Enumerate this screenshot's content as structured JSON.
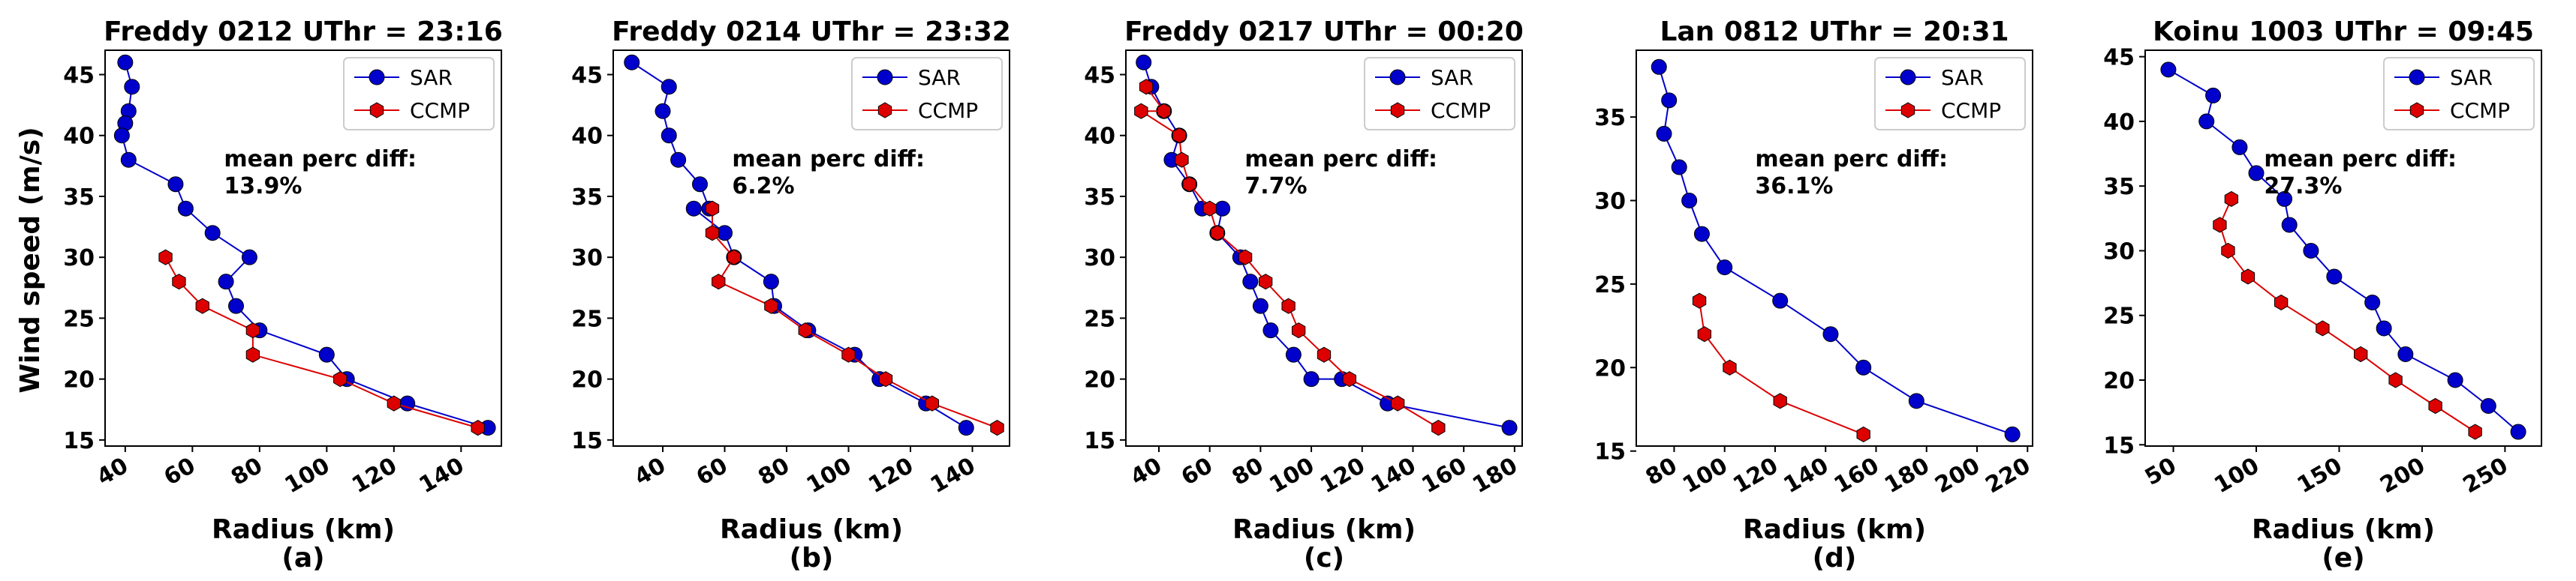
{
  "figure": {
    "ylabel": "Wind speed (m/s)"
  },
  "colors": {
    "sar": "#0000cc",
    "ccmp": "#dd0000"
  },
  "chart_data": [
    {
      "type": "line",
      "title": "Freddy 0212 UThr = 23:16",
      "subcaption": "(a)",
      "xlabel": "Radius (km)",
      "ylabel": "Wind speed (m/s)",
      "xlim": [
        34,
        152
      ],
      "ylim": [
        14.5,
        47
      ],
      "xticks": [
        40,
        60,
        80,
        100,
        120,
        140
      ],
      "yticks": [
        15,
        20,
        25,
        30,
        35,
        40,
        45
      ],
      "legend": "top-right",
      "annotation": [
        "mean perc diff:",
        "13.9%"
      ],
      "series": [
        {
          "name": "SAR",
          "points": [
            [
              40,
              46
            ],
            [
              42,
              44
            ],
            [
              41,
              42
            ],
            [
              40,
              41
            ],
            [
              39,
              40
            ],
            [
              41,
              38
            ],
            [
              55,
              36
            ],
            [
              58,
              34
            ],
            [
              66,
              32
            ],
            [
              77,
              30
            ],
            [
              70,
              28
            ],
            [
              73,
              26
            ],
            [
              80,
              24
            ],
            [
              100,
              22
            ],
            [
              106,
              20
            ],
            [
              124,
              18
            ],
            [
              148,
              16
            ]
          ]
        },
        {
          "name": "CCMP",
          "points": [
            [
              52,
              30
            ],
            [
              56,
              28
            ],
            [
              63,
              26
            ],
            [
              78,
              24
            ],
            [
              78,
              22
            ],
            [
              104,
              20
            ],
            [
              120,
              18
            ],
            [
              145,
              16
            ]
          ]
        }
      ]
    },
    {
      "type": "line",
      "title": "Freddy 0214 UThr = 23:32",
      "subcaption": "(b)",
      "xlabel": "Radius (km)",
      "ylabel": "",
      "xlim": [
        24,
        152
      ],
      "ylim": [
        14.5,
        47
      ],
      "xticks": [
        40,
        60,
        80,
        100,
        120,
        140
      ],
      "yticks": [
        15,
        20,
        25,
        30,
        35,
        40,
        45
      ],
      "legend": "top-right",
      "annotation": [
        "mean perc diff:",
        "6.2%"
      ],
      "series": [
        {
          "name": "SAR",
          "points": [
            [
              30,
              46
            ],
            [
              42,
              44
            ],
            [
              40,
              42
            ],
            [
              42,
              40
            ],
            [
              45,
              38
            ],
            [
              52,
              36
            ],
            [
              55,
              34
            ],
            [
              50,
              34
            ],
            [
              60,
              32
            ],
            [
              63,
              30
            ],
            [
              75,
              28
            ],
            [
              76,
              26
            ],
            [
              87,
              24
            ],
            [
              102,
              22
            ],
            [
              110,
              20
            ],
            [
              125,
              18
            ],
            [
              138,
              16
            ]
          ]
        },
        {
          "name": "CCMP",
          "points": [
            [
              56,
              34
            ],
            [
              56,
              32
            ],
            [
              63,
              30
            ],
            [
              58,
              28
            ],
            [
              75,
              26
            ],
            [
              86,
              24
            ],
            [
              100,
              22
            ],
            [
              112,
              20
            ],
            [
              127,
              18
            ],
            [
              148,
              16
            ]
          ]
        }
      ]
    },
    {
      "type": "line",
      "title": "Freddy 0217 UThr = 00:20",
      "subcaption": "(c)",
      "xlabel": "Radius (km)",
      "ylabel": "",
      "xlim": [
        27,
        183
      ],
      "ylim": [
        14.5,
        47
      ],
      "xticks": [
        40,
        60,
        80,
        100,
        120,
        140,
        160,
        180
      ],
      "yticks": [
        15,
        20,
        25,
        30,
        35,
        40,
        45
      ],
      "legend": "top-right",
      "annotation": [
        "mean perc diff:",
        "7.7%"
      ],
      "series": [
        {
          "name": "SAR",
          "points": [
            [
              34,
              46
            ],
            [
              37,
              44
            ],
            [
              42,
              42
            ],
            [
              48,
              40
            ],
            [
              45,
              38
            ],
            [
              52,
              36
            ],
            [
              57,
              34
            ],
            [
              65,
              34
            ],
            [
              63,
              32
            ],
            [
              72,
              30
            ],
            [
              76,
              28
            ],
            [
              80,
              26
            ],
            [
              84,
              24
            ],
            [
              93,
              22
            ],
            [
              100,
              20
            ],
            [
              112,
              20
            ],
            [
              130,
              18
            ],
            [
              178,
              16
            ]
          ]
        },
        {
          "name": "CCMP",
          "points": [
            [
              35,
              44
            ],
            [
              42,
              42
            ],
            [
              33,
              42
            ],
            [
              48,
              40
            ],
            [
              49,
              38
            ],
            [
              52,
              36
            ],
            [
              60,
              34
            ],
            [
              63,
              32
            ],
            [
              74,
              30
            ],
            [
              82,
              28
            ],
            [
              91,
              26
            ],
            [
              95,
              24
            ],
            [
              105,
              22
            ],
            [
              115,
              20
            ],
            [
              134,
              18
            ],
            [
              150,
              16
            ]
          ]
        }
      ]
    },
    {
      "type": "line",
      "title": "Lan 0812 UThr = 20:31",
      "subcaption": "(d)",
      "xlabel": "Radius (km)",
      "ylabel": "",
      "xlim": [
        65,
        222
      ],
      "ylim": [
        15.3,
        39
      ],
      "xticks": [
        80,
        100,
        120,
        140,
        160,
        180,
        200,
        220
      ],
      "yticks": [
        15,
        20,
        25,
        30,
        35
      ],
      "legend": "top-right",
      "annotation": [
        "mean perc diff:",
        "36.1%"
      ],
      "series": [
        {
          "name": "SAR",
          "points": [
            [
              74,
              38
            ],
            [
              78,
              36
            ],
            [
              76,
              34
            ],
            [
              82,
              32
            ],
            [
              86,
              30
            ],
            [
              91,
              28
            ],
            [
              100,
              26
            ],
            [
              122,
              24
            ],
            [
              142,
              22
            ],
            [
              155,
              20
            ],
            [
              176,
              18
            ],
            [
              214,
              16
            ]
          ]
        },
        {
          "name": "CCMP",
          "points": [
            [
              90,
              24
            ],
            [
              92,
              22
            ],
            [
              102,
              20
            ],
            [
              122,
              18
            ],
            [
              155,
              16
            ]
          ]
        }
      ]
    },
    {
      "type": "line",
      "title": "Koinu 1003 UThr = 09:45",
      "subcaption": "(e)",
      "xlabel": "Radius (km)",
      "ylabel": "",
      "xlim": [
        33,
        272
      ],
      "ylim": [
        14.9,
        45.5
      ],
      "xticks": [
        50,
        100,
        150,
        200,
        250
      ],
      "yticks": [
        15,
        20,
        25,
        30,
        35,
        40,
        45
      ],
      "legend": "top-right",
      "annotation": [
        "mean perc diff:",
        "27.3%"
      ],
      "series": [
        {
          "name": "SAR",
          "points": [
            [
              47,
              44
            ],
            [
              74,
              42
            ],
            [
              70,
              40
            ],
            [
              90,
              38
            ],
            [
              100,
              36
            ],
            [
              117,
              34
            ],
            [
              120,
              32
            ],
            [
              133,
              30
            ],
            [
              147,
              28
            ],
            [
              170,
              26
            ],
            [
              177,
              24
            ],
            [
              190,
              22
            ],
            [
              220,
              20
            ],
            [
              240,
              18
            ],
            [
              258,
              16
            ]
          ]
        },
        {
          "name": "CCMP",
          "points": [
            [
              85,
              34
            ],
            [
              78,
              32
            ],
            [
              83,
              30
            ],
            [
              95,
              28
            ],
            [
              115,
              26
            ],
            [
              140,
              24
            ],
            [
              163,
              22
            ],
            [
              184,
              20
            ],
            [
              208,
              18
            ],
            [
              232,
              16
            ]
          ]
        }
      ]
    }
  ]
}
